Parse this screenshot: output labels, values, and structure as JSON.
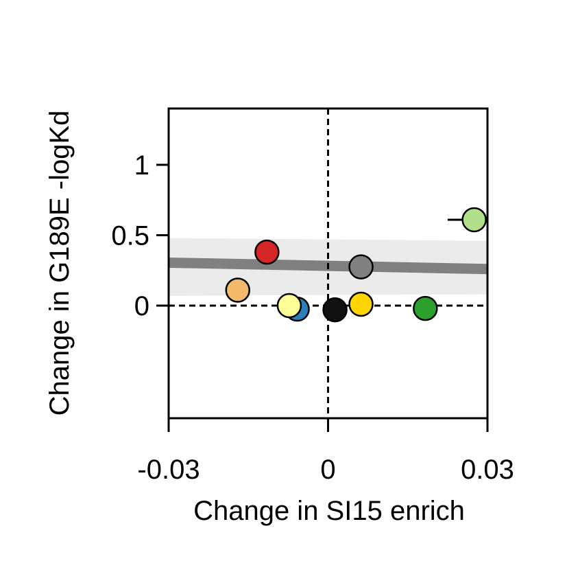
{
  "chart_data": {
    "type": "scatter",
    "xlabel": "Change in SI15 enrich",
    "ylabel": "Change in G189E -logKd",
    "xlim": [
      -0.03,
      0.03
    ],
    "ylim": [
      -0.8,
      1.4
    ],
    "xticks": [
      {
        "value": -0.03,
        "label": "-0.03"
      },
      {
        "value": 0,
        "label": "0"
      },
      {
        "value": 0.03,
        "label": "0.03"
      }
    ],
    "yticks": [
      {
        "value": 0,
        "label": "0"
      },
      {
        "value": 0.5,
        "label": "0.5"
      },
      {
        "value": 1,
        "label": "1"
      }
    ],
    "reference_lines": {
      "x": 0,
      "y": 0,
      "style": "dashed"
    },
    "regression": {
      "x": [
        -0.03,
        0.03
      ],
      "y": [
        0.305,
        0.26
      ],
      "ci_lower": [
        0.07,
        0.08
      ],
      "ci_upper": [
        0.48,
        0.46
      ],
      "line_color": "#808080",
      "band_color": "#ebebeb"
    },
    "points": [
      {
        "x": -0.0115,
        "y": 0.38,
        "color": "#d62728"
      },
      {
        "x": -0.017,
        "y": 0.11,
        "color": "#f4b96a"
      },
      {
        "x": -0.0058,
        "y": -0.025,
        "color": "#2c7fb8"
      },
      {
        "x": -0.0073,
        "y": 0.0,
        "color": "#ffff99"
      },
      {
        "x": 0.0013,
        "y": -0.03,
        "color": "#111111"
      },
      {
        "x": 0.0062,
        "y": 0.01,
        "color": "#ffd700"
      },
      {
        "x": 0.0062,
        "y": 0.275,
        "color": "#808080"
      },
      {
        "x": 0.0183,
        "y": -0.02,
        "color": "#2ca02c"
      },
      {
        "x": 0.0275,
        "y": 0.61,
        "color": "#b2df8a",
        "xerr": 0.005
      }
    ],
    "grid": false,
    "legend": "none"
  }
}
